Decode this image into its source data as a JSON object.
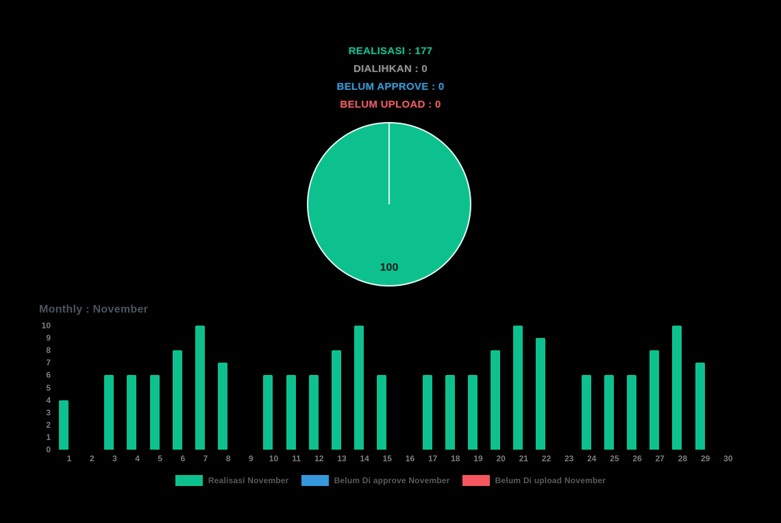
{
  "summary": {
    "items": [
      {
        "label": "REALISASI",
        "value": 177,
        "text": "REALISASI : 177",
        "color": "#0dc18f"
      },
      {
        "label": "DIALIHKAN",
        "value": 0,
        "text": "DIALIHKAN : 0",
        "color": "#949494"
      },
      {
        "label": "BELUM APPROVE",
        "value": 0,
        "text": "BELUM APPROVE : 0",
        "color": "#3598db"
      },
      {
        "label": "BELUM UPLOAD",
        "value": 0,
        "text": "BELUM UPLOAD : 0",
        "color": "#f4575d"
      }
    ]
  },
  "chart_data": [
    {
      "type": "pie",
      "title": "",
      "slices": [
        {
          "label": "Realisasi",
          "value": 100,
          "color": "#0dc18f"
        }
      ],
      "data_label": "100",
      "data_label_color": "#1b1b1b",
      "note": "single full slice labeled 100 (percent), white divider line at 12 o'clock"
    },
    {
      "type": "bar",
      "title": "Monthly : November",
      "categories": [
        "1",
        "2",
        "3",
        "4",
        "5",
        "6",
        "7",
        "8",
        "9",
        "10",
        "11",
        "12",
        "13",
        "14",
        "15",
        "16",
        "17",
        "18",
        "19",
        "20",
        "21",
        "22",
        "23",
        "24",
        "25",
        "26",
        "27",
        "28",
        "29",
        "30"
      ],
      "series": [
        {
          "name": "Realisasi November",
          "color": "#0dc18f",
          "values": [
            4,
            0,
            6,
            6,
            6,
            8,
            10,
            7,
            0,
            6,
            6,
            6,
            8,
            10,
            6,
            0,
            6,
            6,
            6,
            8,
            10,
            9,
            0,
            6,
            6,
            6,
            8,
            10,
            7,
            0
          ]
        },
        {
          "name": "Belum Di approve November",
          "color": "#3598db",
          "values": [
            0,
            0,
            0,
            0,
            0,
            0,
            0,
            0,
            0,
            0,
            0,
            0,
            0,
            0,
            0,
            0,
            0,
            0,
            0,
            0,
            0,
            0,
            0,
            0,
            0,
            0,
            0,
            0,
            0,
            0
          ]
        },
        {
          "name": "Belum Di upload November",
          "color": "#f4575d",
          "values": [
            0,
            0,
            0,
            0,
            0,
            0,
            0,
            0,
            0,
            0,
            0,
            0,
            0,
            0,
            0,
            0,
            0,
            0,
            0,
            0,
            0,
            0,
            0,
            0,
            0,
            0,
            0,
            0,
            0,
            0
          ]
        }
      ],
      "xlabel": "",
      "ylabel": "",
      "ylim": [
        0,
        10
      ],
      "yticks": [
        0,
        1,
        2,
        3,
        4,
        5,
        6,
        7,
        8,
        9,
        10
      ],
      "grid": false,
      "legend_position": "bottom"
    }
  ]
}
